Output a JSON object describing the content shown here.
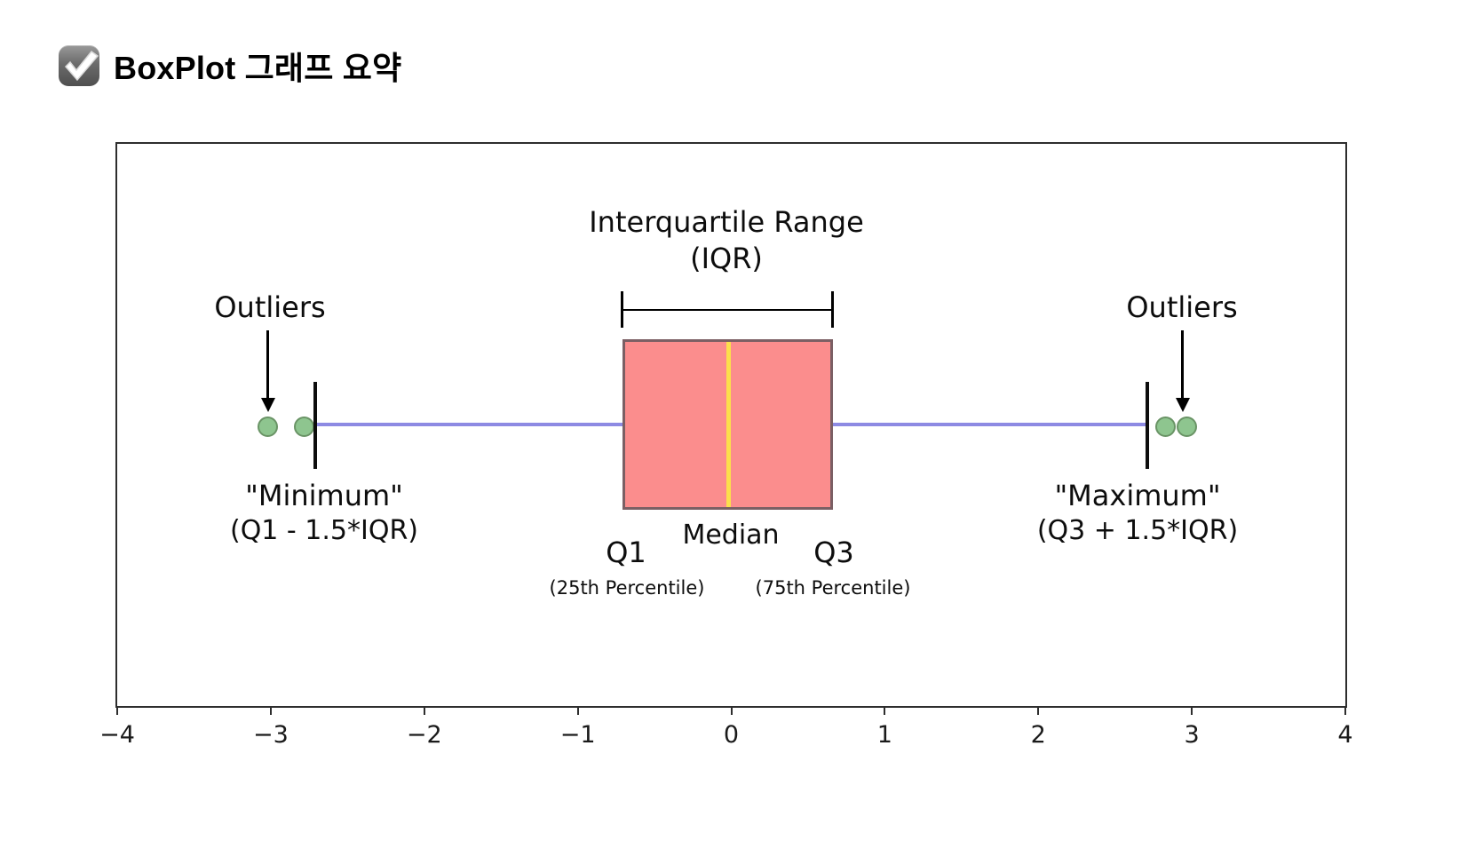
{
  "page": {
    "title": "BoxPlot 그래프 요약",
    "title_icon": "check-mark-button-emoji",
    "background": "#ffffff"
  },
  "chart_data": {
    "type": "boxplot",
    "orientation": "horizontal",
    "title": "",
    "xlabel": "",
    "ylabel": "",
    "xlim": [
      -4,
      4
    ],
    "x_ticks": [
      -4,
      -3,
      -2,
      -1,
      0,
      1,
      2,
      3,
      4
    ],
    "grid": false,
    "box": {
      "q1": -0.71,
      "median": -0.02,
      "q3": 0.66
    },
    "whiskers": {
      "low": -2.71,
      "high": 2.71
    },
    "outliers": [
      -3.02,
      -2.78,
      2.83,
      2.97
    ],
    "colors": {
      "box_fill": "#fb8d8d",
      "box_border": "#7b5f64",
      "median_line": "#fcdf4c",
      "whisker_line": "#8d8ae3",
      "cap_line": "#0d0d0d",
      "outlier_fill": "#8ec58f",
      "outlier_border": "#6a9466",
      "frame": "#2e2e2e",
      "text": "#0d0d0d"
    },
    "annotations": {
      "iqr_title": "Interquartile Range",
      "iqr_subtitle": "(IQR)",
      "outliers_left": "Outliers",
      "outliers_right": "Outliers",
      "min_label": "\"Minimum\"",
      "min_formula": "(Q1 - 1.5*IQR)",
      "max_label": "\"Maximum\"",
      "max_formula": "(Q3 + 1.5*IQR)",
      "q1_label": "Q1",
      "q1_sub": "(25th Percentile)",
      "median_label": "Median",
      "q3_label": "Q3",
      "q3_sub": "(75th Percentile)"
    }
  }
}
